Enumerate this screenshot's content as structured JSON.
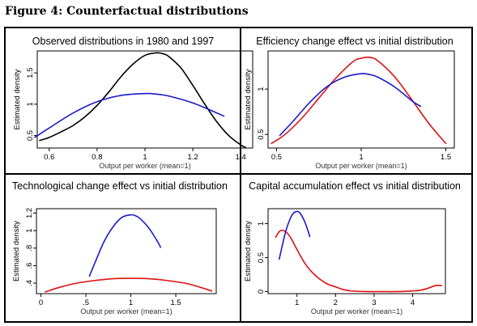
{
  "figure_title": "Figure 4: Counterfactual distributions",
  "colors": {
    "black": "#000000",
    "blue": "#1a1acc",
    "red": "#dd1111"
  },
  "chart_data": [
    {
      "type": "line",
      "title": "Observed distributions in 1980 and 1997",
      "xlabel": "Output per worker (mean=1)",
      "ylabel": "Estimated density",
      "xlim": [
        0.55,
        1.45
      ],
      "ylim": [
        0.3,
        1.85
      ],
      "xticks": [
        "0.6",
        "0.8",
        "1",
        "1.2",
        "1.4"
      ],
      "yticks": [
        "0.5",
        "1",
        "1.5"
      ],
      "series": [
        {
          "color": "black",
          "x": [
            0.56,
            0.6,
            0.65,
            0.7,
            0.75,
            0.8,
            0.85,
            0.9,
            0.95,
            1.0,
            1.05,
            1.08,
            1.1,
            1.15,
            1.2,
            1.25,
            1.3,
            1.35,
            1.4,
            1.42
          ],
          "y": [
            0.42,
            0.47,
            0.56,
            0.66,
            0.8,
            0.98,
            1.2,
            1.44,
            1.64,
            1.78,
            1.82,
            1.8,
            1.76,
            1.58,
            1.3,
            1.0,
            0.72,
            0.5,
            0.35,
            0.31
          ]
        },
        {
          "color": "blue",
          "x": [
            0.54,
            0.6,
            0.7,
            0.8,
            0.9,
            1.0,
            1.05,
            1.1,
            1.2,
            1.3,
            1.33
          ],
          "y": [
            0.47,
            0.62,
            0.86,
            1.04,
            1.14,
            1.17,
            1.16,
            1.13,
            1.02,
            0.86,
            0.81
          ]
        }
      ]
    },
    {
      "type": "line",
      "title": "Efficiency change effect vs initial distribution",
      "xlabel": "Output per worker (mean=1)",
      "ylabel": "Estimated density",
      "xlim": [
        0.45,
        1.55
      ],
      "ylim": [
        0.35,
        1.42
      ],
      "xticks": [
        "0.5",
        "1",
        "1.5"
      ],
      "yticks": [
        "0.5",
        "1"
      ],
      "series": [
        {
          "color": "red",
          "x": [
            0.47,
            0.55,
            0.65,
            0.75,
            0.85,
            0.95,
            1.0,
            1.05,
            1.1,
            1.2,
            1.3,
            1.4,
            1.5
          ],
          "y": [
            0.4,
            0.5,
            0.68,
            0.9,
            1.12,
            1.3,
            1.34,
            1.35,
            1.31,
            1.13,
            0.88,
            0.62,
            0.4
          ]
        },
        {
          "color": "blue",
          "x": [
            0.52,
            0.6,
            0.7,
            0.8,
            0.9,
            1.0,
            1.05,
            1.1,
            1.2,
            1.3,
            1.35
          ],
          "y": [
            0.49,
            0.65,
            0.86,
            1.03,
            1.13,
            1.17,
            1.16,
            1.13,
            1.02,
            0.87,
            0.81
          ]
        }
      ]
    },
    {
      "type": "line",
      "title": "Technological change effect vs initial distribution",
      "xlabel": "Output per worker (mean=1)",
      "ylabel": "Estimated density",
      "xlim": [
        -0.05,
        1.95
      ],
      "ylim": [
        0.28,
        1.25
      ],
      "xticks": [
        "0",
        ".5",
        "1",
        "1.5"
      ],
      "yticks": [
        ".4",
        ".6",
        ".8",
        "1",
        "1.2"
      ],
      "series": [
        {
          "color": "blue",
          "x": [
            0.54,
            0.6,
            0.7,
            0.8,
            0.9,
            1.0,
            1.05,
            1.1,
            1.2,
            1.3,
            1.33
          ],
          "y": [
            0.48,
            0.63,
            0.87,
            1.04,
            1.15,
            1.18,
            1.17,
            1.14,
            1.03,
            0.87,
            0.81
          ]
        },
        {
          "color": "red",
          "x": [
            0.05,
            0.2,
            0.4,
            0.6,
            0.8,
            1.0,
            1.2,
            1.4,
            1.6,
            1.75,
            1.9
          ],
          "y": [
            0.3,
            0.35,
            0.4,
            0.43,
            0.45,
            0.455,
            0.45,
            0.43,
            0.4,
            0.36,
            0.31
          ]
        }
      ]
    },
    {
      "type": "line",
      "title": "Capital accumulation effect vs initial distribution",
      "xlabel": "Output per worker (mean=1)",
      "ylabel": "Estimated density",
      "xlim": [
        0.25,
        4.85
      ],
      "ylim": [
        -0.03,
        1.22
      ],
      "xticks": [
        "1",
        "2",
        "3",
        "4"
      ],
      "yticks": [
        "0",
        "0.5",
        "1"
      ],
      "series": [
        {
          "color": "red",
          "x": [
            0.45,
            0.55,
            0.65,
            0.75,
            0.85,
            1.0,
            1.2,
            1.4,
            1.6,
            1.8,
            2.0,
            2.2,
            2.4,
            2.8,
            3.2,
            3.6,
            4.0,
            4.2,
            4.4,
            4.6,
            4.75
          ],
          "y": [
            0.8,
            0.89,
            0.9,
            0.86,
            0.78,
            0.62,
            0.42,
            0.28,
            0.18,
            0.11,
            0.07,
            0.03,
            0.01,
            0.0,
            0.0,
            0.0,
            0.01,
            0.02,
            0.05,
            0.09,
            0.09
          ]
        },
        {
          "color": "blue",
          "x": [
            0.54,
            0.6,
            0.7,
            0.8,
            0.9,
            1.0,
            1.05,
            1.1,
            1.2,
            1.3,
            1.33
          ],
          "y": [
            0.48,
            0.63,
            0.87,
            1.04,
            1.15,
            1.18,
            1.17,
            1.14,
            1.03,
            0.87,
            0.81
          ]
        }
      ]
    }
  ]
}
